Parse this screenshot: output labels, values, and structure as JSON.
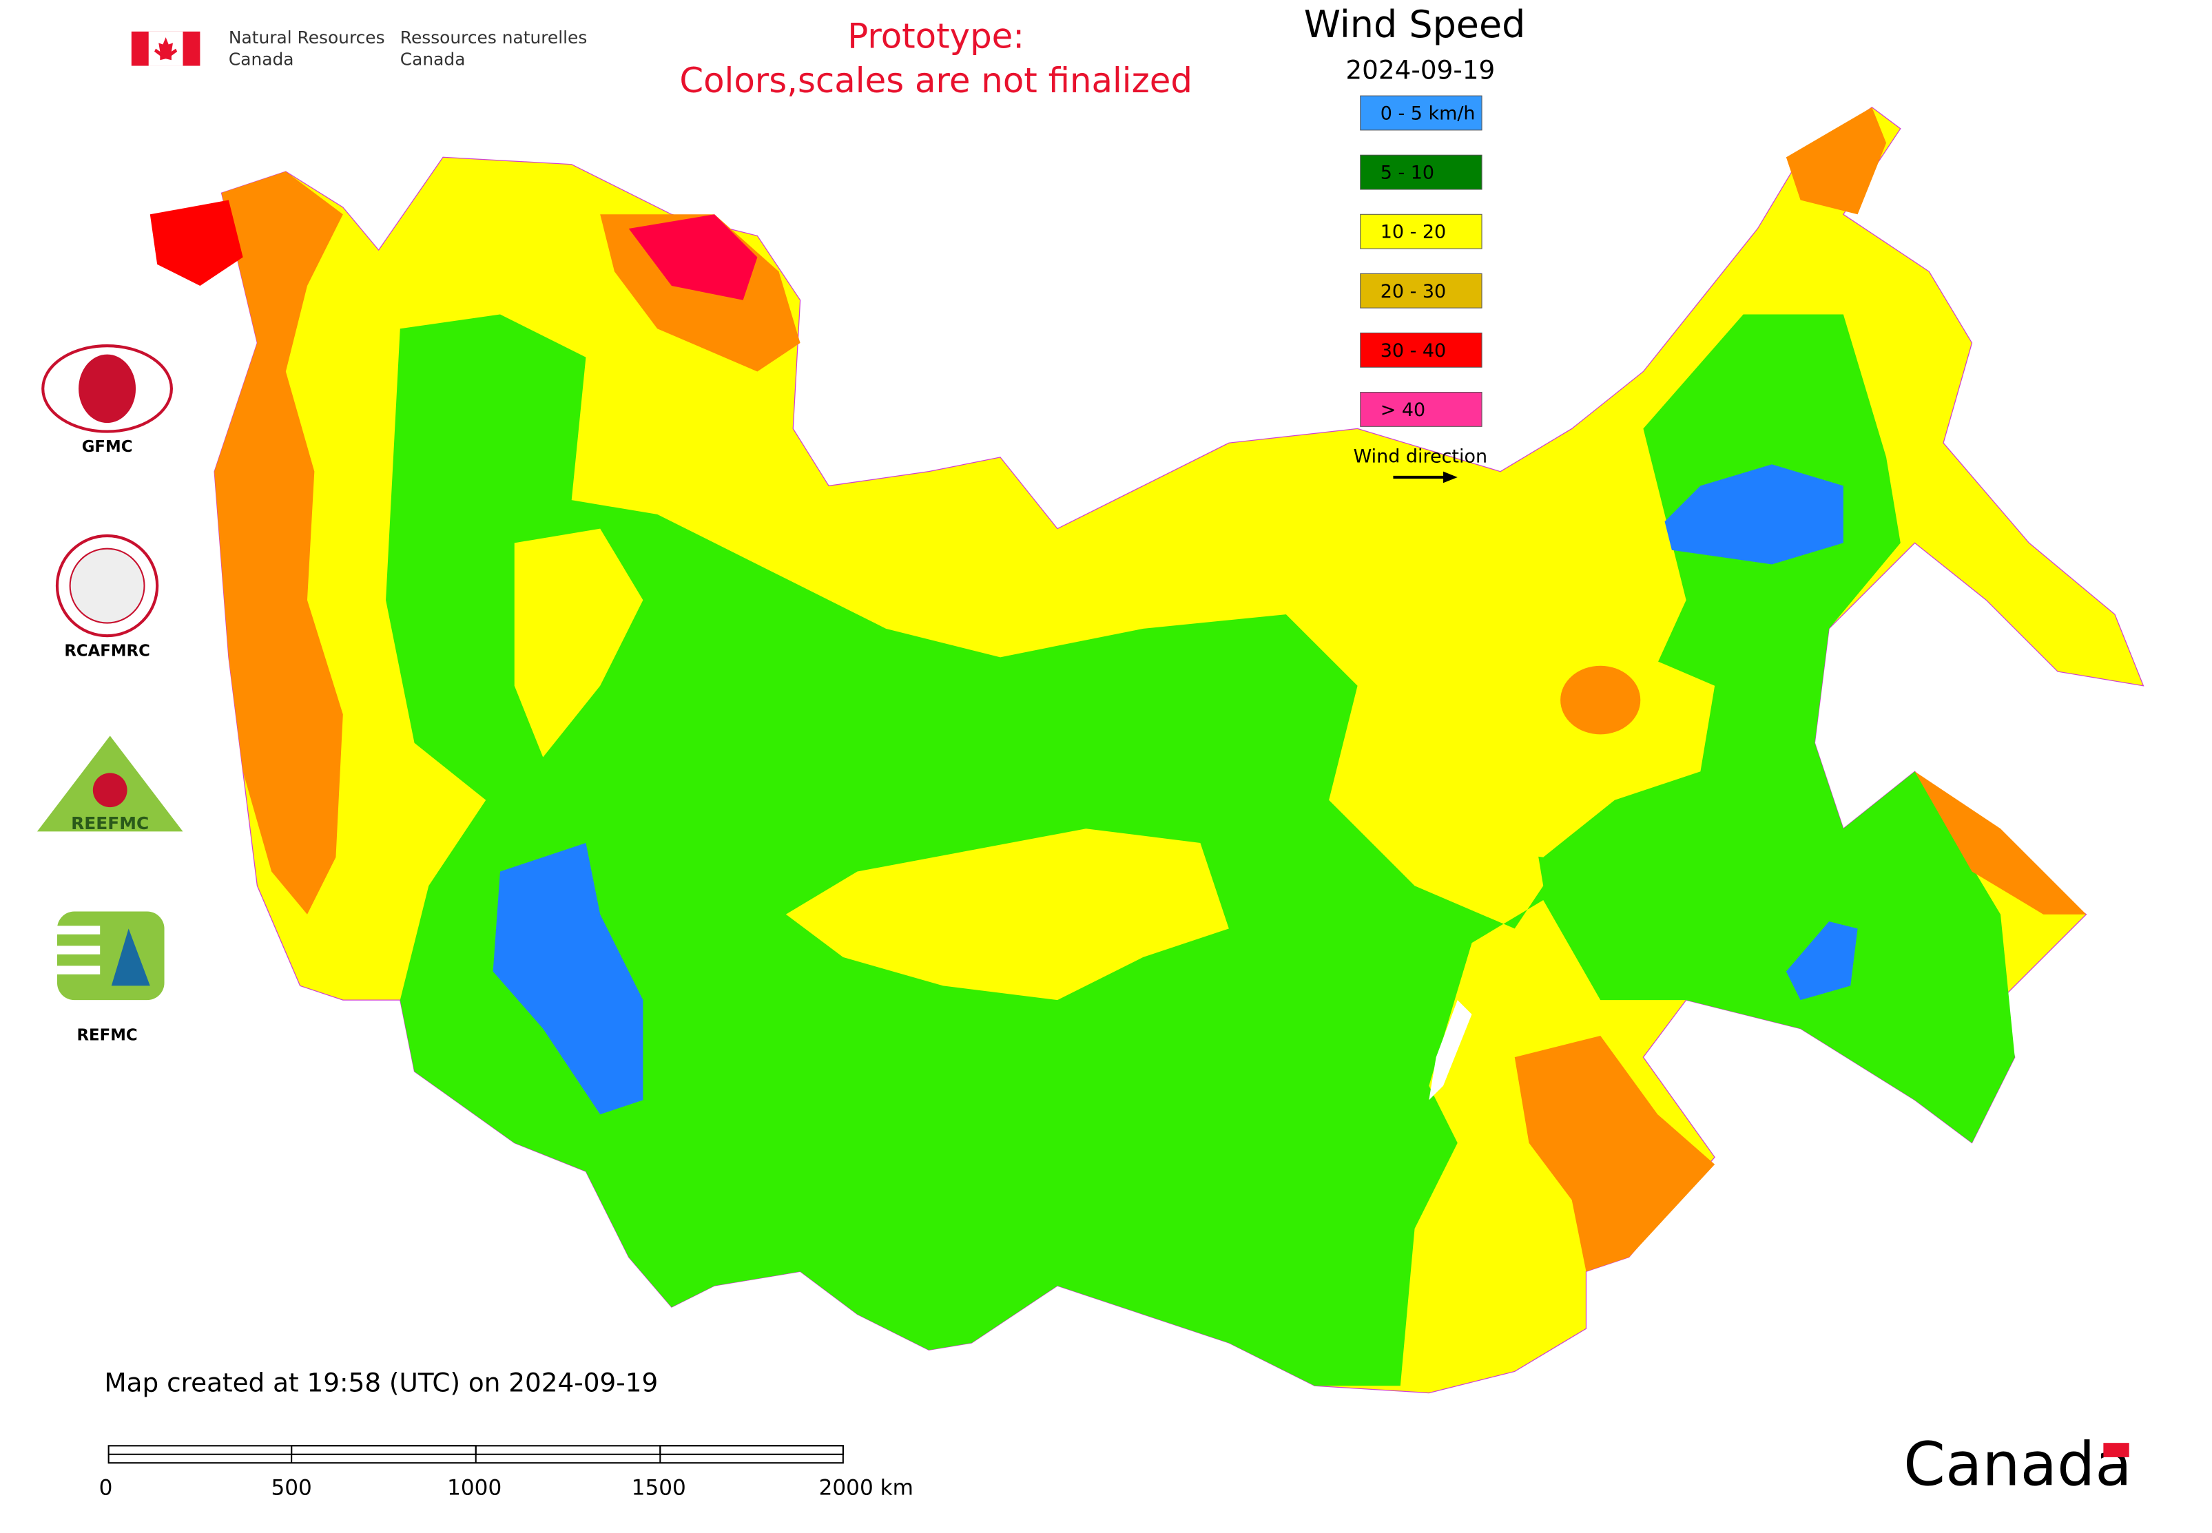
{
  "header": {
    "en_line1": "Natural Resources",
    "en_line2": "Canada",
    "fr_line1": "Ressources naturelles",
    "fr_line2": "Canada"
  },
  "notice": [
    "Prototype:",
    "Colors,scales are not finalized"
  ],
  "legend": {
    "title": "Wind Speed",
    "date": "2024-09-19",
    "items": [
      {
        "label": "0 - 5 km/h",
        "color": "#3399ff"
      },
      {
        "label": "5 - 10",
        "color": "#008000"
      },
      {
        "label": "10 - 20",
        "color": "#ffff00"
      },
      {
        "label": "20 - 30",
        "color": "#e0b800"
      },
      {
        "label": "30 - 40",
        "color": "#ff0000"
      },
      {
        "label": "> 40",
        "color": "#ff3399"
      }
    ],
    "direction_label": "Wind direction"
  },
  "partners": [
    "GFMC",
    "RCAFMRC",
    "REEFMC",
    "REFMC"
  ],
  "footer": {
    "created": "Map created at 19:58 (UTC) on 2024-09-19",
    "scale_labels": [
      "0",
      "500",
      "1000",
      "1500",
      "2000 km"
    ],
    "wordmark": "Canada"
  }
}
